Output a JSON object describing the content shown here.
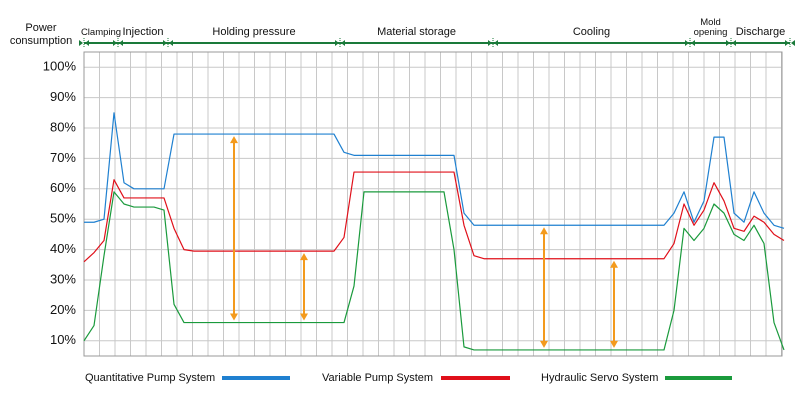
{
  "chart_data": {
    "type": "line",
    "ylabel": "Power consumption",
    "phases": [
      "Clamping",
      "Injection",
      "Holding pressure",
      "Material storage",
      "Cooling",
      "Mold opening",
      "Discharge"
    ],
    "categories": [
      null,
      null,
      null,
      null,
      null,
      null,
      null,
      null,
      null,
      null,
      null,
      null,
      null,
      null,
      null,
      null,
      null,
      null,
      null,
      null,
      null,
      null,
      null,
      null,
      null,
      null,
      null,
      null,
      null,
      null,
      null,
      null,
      null,
      null,
      null,
      null,
      null,
      null,
      null,
      null,
      null,
      null,
      null,
      null,
      null,
      null,
      null,
      null,
      null,
      null,
      null,
      null,
      null,
      null,
      null,
      null,
      null,
      null,
      null,
      null,
      null,
      null,
      null,
      null,
      null,
      null,
      null,
      null,
      null,
      null,
      null
    ],
    "ylim": [
      5,
      105
    ],
    "yticks": [
      {
        "value": 10,
        "label": "10%"
      },
      {
        "value": 20,
        "label": "20%"
      },
      {
        "value": 30,
        "label": "30%"
      },
      {
        "value": 40,
        "label": "40%"
      },
      {
        "value": 50,
        "label": "50%"
      },
      {
        "value": 60,
        "label": "60%"
      },
      {
        "value": 70,
        "label": "70%"
      },
      {
        "value": 80,
        "label": "80%"
      },
      {
        "value": 90,
        "label": "90%"
      },
      {
        "value": 100,
        "label": "100%"
      }
    ],
    "grid": true,
    "series": [
      {
        "name": "Quantitative Pump System",
        "color": "#1f80d0",
        "values": [
          49,
          49,
          50,
          85,
          62,
          60,
          60,
          60,
          60,
          78,
          78,
          78,
          78,
          78,
          78,
          78,
          78,
          78,
          78,
          78,
          78,
          78,
          78,
          78,
          78,
          78,
          72,
          71,
          71,
          71,
          71,
          71,
          71,
          71,
          71,
          71,
          71,
          71,
          52,
          48,
          48,
          48,
          48,
          48,
          48,
          48,
          48,
          48,
          48,
          48,
          48,
          48,
          48,
          48,
          48,
          48,
          48,
          48,
          48,
          52,
          59,
          49,
          56,
          77,
          77,
          52,
          49,
          59,
          52,
          48,
          47
        ]
      },
      {
        "name": "Variable Pump System",
        "color": "#e0101a",
        "values": [
          36,
          39,
          43,
          63,
          57,
          57,
          57,
          57,
          57,
          47,
          40,
          39.5,
          39.5,
          39.5,
          39.5,
          39.5,
          39.5,
          39.5,
          39.5,
          39.5,
          39.5,
          39.5,
          39.5,
          39.5,
          39.5,
          39.5,
          44,
          65.5,
          65.5,
          65.5,
          65.5,
          65.5,
          65.5,
          65.5,
          65.5,
          65.5,
          65.5,
          65.5,
          48,
          38,
          37,
          37,
          37,
          37,
          37,
          37,
          37,
          37,
          37,
          37,
          37,
          37,
          37,
          37,
          37,
          37,
          37,
          37,
          37,
          42,
          55,
          48,
          53,
          62,
          56,
          47,
          46,
          51,
          49,
          45,
          43
        ]
      },
      {
        "name": "Hydraulic Servo System",
        "color": "#1a9a3c",
        "values": [
          10,
          15,
          38,
          59,
          55,
          54,
          54,
          54,
          53,
          22,
          16,
          16,
          16,
          16,
          16,
          16,
          16,
          16,
          16,
          16,
          16,
          16,
          16,
          16,
          16,
          16,
          16,
          28,
          59,
          59,
          59,
          59,
          59,
          59,
          59,
          59,
          59,
          40,
          8,
          7,
          7,
          7,
          7,
          7,
          7,
          7,
          7,
          7,
          7,
          7,
          7,
          7,
          7,
          7,
          7,
          7,
          7,
          7,
          7,
          20,
          47,
          43,
          47,
          55,
          52,
          45,
          43,
          48,
          42,
          16,
          7
        ]
      }
    ]
  }
}
